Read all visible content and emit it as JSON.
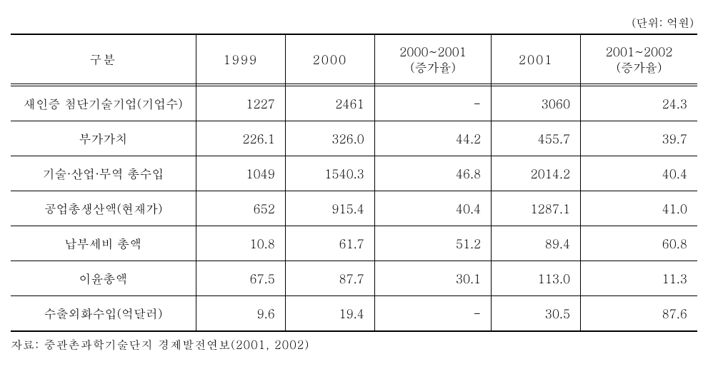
{
  "unit_label": "(단위: 억원)",
  "columns": {
    "c0": "구분",
    "c1": "1999",
    "c2": "2000",
    "c3": "2000~2001\n(증가율)",
    "c4": "2001",
    "c5": "2001~2002\n(증가율)"
  },
  "rows": [
    {
      "label": "새인증 첨단기술기업(기업수)",
      "v1": "1227",
      "v2": "2461",
      "v3": "-",
      "v4": "3060",
      "v5": "24.3"
    },
    {
      "label": "부가가치",
      "v1": "226.1",
      "v2": "326.0",
      "v3": "44.2",
      "v4": "455.7",
      "v5": "39.7"
    },
    {
      "label": "기술·산업·무역 총수입",
      "v1": "1049",
      "v2": "1540.3",
      "v3": "46.8",
      "v4": "2014.2",
      "v5": "40.4"
    },
    {
      "label": "공업총생산액(현재가)",
      "v1": "652",
      "v2": "915.4",
      "v3": "40.4",
      "v4": "1287.1",
      "v5": "41.0"
    },
    {
      "label": "납부세비 총액",
      "v1": "10.8",
      "v2": "61.7",
      "v3": "51.2",
      "v4": "89.4",
      "v5": "60.8"
    },
    {
      "label": "이윤총액",
      "v1": "67.5",
      "v2": "87.7",
      "v3": "30.1",
      "v4": "113.0",
      "v5": "11.3"
    },
    {
      "label": "수출외화수입(억달러)",
      "v1": "9.6",
      "v2": "19.4",
      "v3": "-",
      "v4": "30.5",
      "v5": "87.6"
    }
  ],
  "source": "자료: 중관촌과학기술단지 경제발전연보(2001, 2002)"
}
